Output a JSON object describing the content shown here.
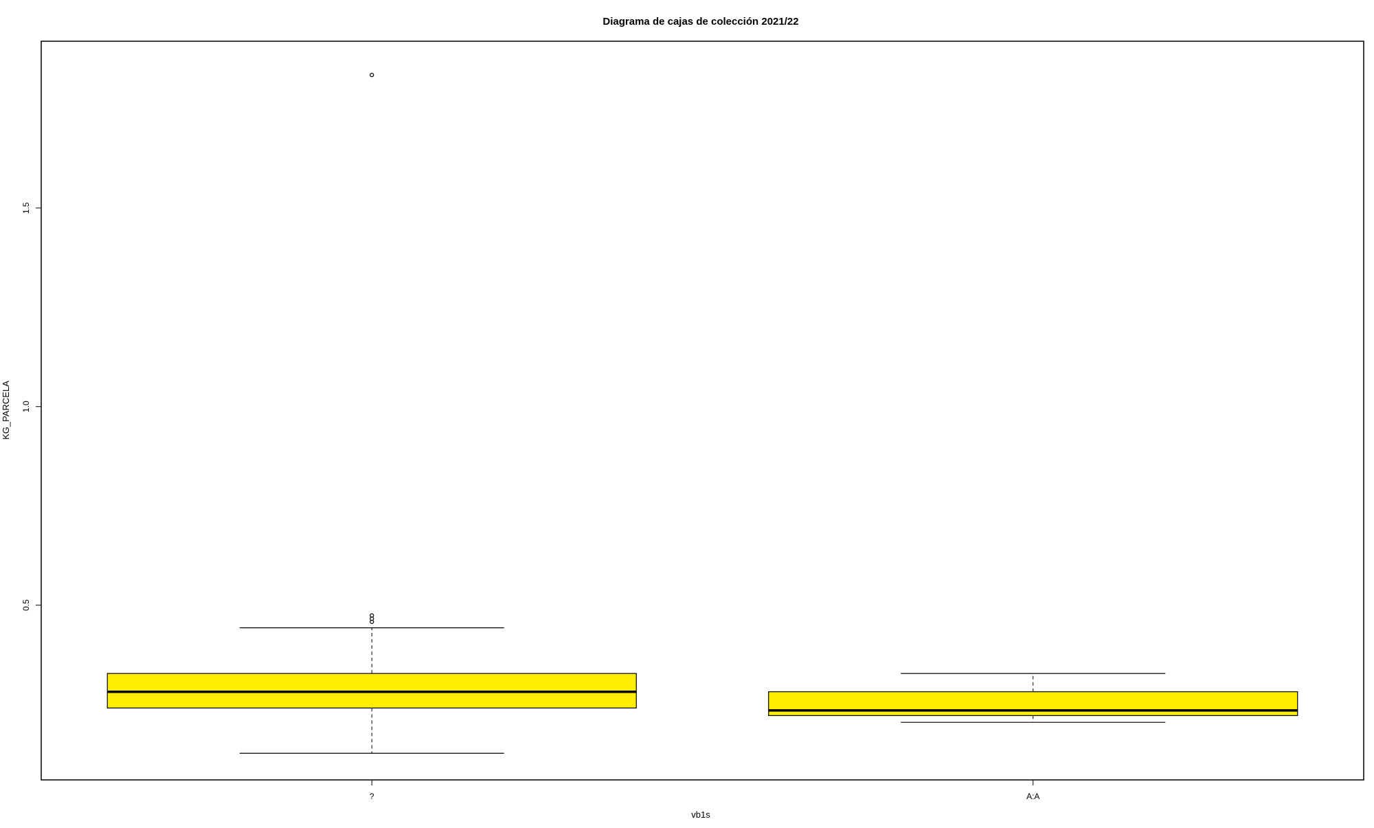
{
  "chart_data": {
    "type": "boxplot",
    "title": "Diagrama de cajas de colección 2021/22",
    "xlabel": "vb1s",
    "ylabel": "KG_PARCELA",
    "ylim": [
      0.06,
      1.92
    ],
    "yticks": [
      {
        "value": 0.5,
        "label": "0.5"
      },
      {
        "value": 1.0,
        "label": "1.0"
      },
      {
        "value": 1.5,
        "label": "1.5"
      }
    ],
    "grid": false,
    "legend": "none",
    "box_color": "#ffee00",
    "line_color": "#000000",
    "series": [
      {
        "category": "?",
        "whisker_low": 0.127,
        "q1": 0.241,
        "median": 0.282,
        "q3": 0.328,
        "whisker_high": 0.443,
        "outliers": [
          0.458,
          0.466,
          0.474,
          1.835
        ]
      },
      {
        "category": "A:A",
        "whisker_low": 0.205,
        "q1": 0.222,
        "median": 0.235,
        "q3": 0.282,
        "whisker_high": 0.328,
        "outliers": []
      }
    ]
  }
}
